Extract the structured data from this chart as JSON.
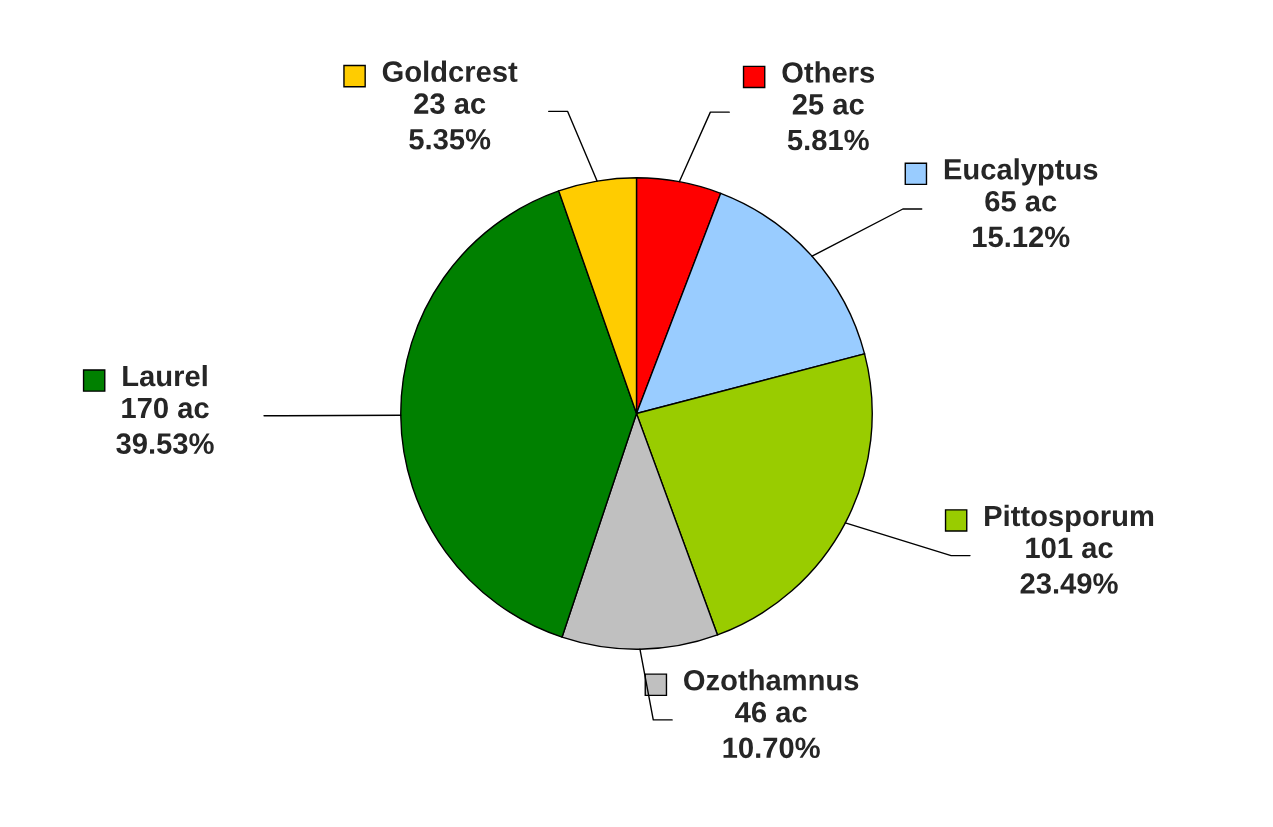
{
  "chart_data": {
    "type": "pie",
    "categories": [
      "Others",
      "Eucalyptus",
      "Pittosporum",
      "Ozothamnus",
      "Laurel",
      "Goldcrest"
    ],
    "values": [
      25,
      65,
      101,
      46,
      170,
      23
    ],
    "legend": "top left",
    "colors": [
      "#ff0000",
      "#99ccff",
      "#99cc00",
      "#c0c0c0",
      "#008000",
      "#ffcc00"
    ],
    "value_labels": [
      "25 ac\n5.81%",
      "65 ac\n15.12%",
      "101 ac\n23.49%",
      "46 ac\n10.70%",
      "170 ac\n39.53%",
      "23 ac\n5.35%"
    ]
  }
}
